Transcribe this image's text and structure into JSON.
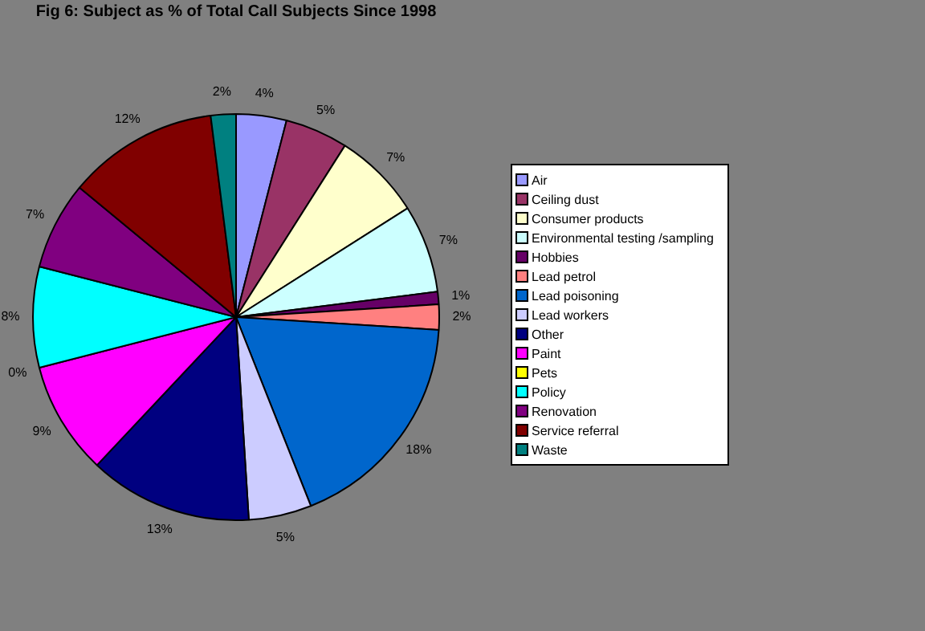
{
  "chart_data": {
    "type": "pie",
    "title": "Fig 6: Subject as % of Total Call Subjects Since 1998",
    "categories": [
      "Air",
      "Ceiling dust",
      "Consumer products",
      "Environmental testing /sampling",
      "Hobbies",
      "Lead petrol",
      "Lead poisoning",
      "Lead workers",
      "Other",
      "Paint",
      "Pets",
      "Policy",
      "Renovation",
      "Service referral",
      "Waste"
    ],
    "values": [
      4,
      5,
      7,
      7,
      1,
      2,
      18,
      5,
      13,
      9,
      0,
      8,
      7,
      12,
      2
    ],
    "colors": [
      "#9999ff",
      "#993366",
      "#ffffcc",
      "#ccffff",
      "#660066",
      "#ff8080",
      "#0066cc",
      "#ccccff",
      "#000080",
      "#ff00ff",
      "#ffff00",
      "#00ffff",
      "#800080",
      "#800000",
      "#008080"
    ],
    "value_labels": [
      "4%",
      "5%",
      "7%",
      "7%",
      "1%",
      "2%",
      "18%",
      "5%",
      "13%",
      "9%",
      "0%",
      "8%",
      "7%",
      "12%",
      "2%"
    ],
    "legend": "right"
  }
}
